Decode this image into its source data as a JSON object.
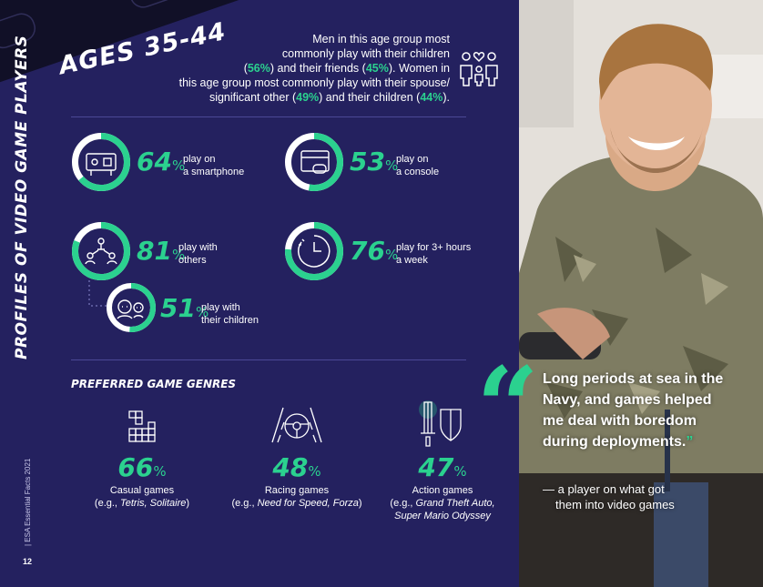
{
  "sidebar": {
    "vertical_title": "PROFILES OF VIDEO GAME PLAYERS",
    "footer": "|  ESA Essential Facts 2021",
    "page_number": "12"
  },
  "banner": {
    "title": "AGES 35-44"
  },
  "intro": {
    "line1": "Men in this age group most",
    "line2": "commonly play with their children",
    "open1": "(",
    "p1": "56%",
    "mid1": ") and their friends (",
    "p2": "45%",
    "end1": "). Women in",
    "line4": "this age group most commonly play with their spouse/",
    "line5a": "significant other (",
    "p3": "49%",
    "line5b": ") and their children (",
    "p4": "44%",
    "line5c": ")."
  },
  "stats": [
    {
      "value": 64,
      "pct": "%",
      "label1": "play on",
      "label2": "a smartphone",
      "icon": "smartphone-icon"
    },
    {
      "value": 53,
      "pct": "%",
      "label1": "play on",
      "label2": "a console",
      "icon": "console-icon"
    },
    {
      "value": 81,
      "pct": "%",
      "label1": "play with",
      "label2": "others",
      "icon": "people-icon"
    },
    {
      "value": 76,
      "pct": "%",
      "label1": "play for 3+ hours",
      "label2": "a week",
      "icon": "clock-icon"
    },
    {
      "value": 51,
      "pct": "%",
      "label1": "play with",
      "label2": "their children",
      "icon": "parent-child-icon"
    }
  ],
  "genres": {
    "heading": "PREFERRED GAME GENRES",
    "items": [
      {
        "value": "66",
        "pct": "%",
        "name": "Casual games",
        "ex_pre": "(e.g., ",
        "ex_it": "Tetris, Solitaire",
        "ex_post": ")",
        "ex2": "",
        "icon": "blocks-icon"
      },
      {
        "value": "48",
        "pct": "%",
        "name": "Racing games",
        "ex_pre": "(e.g., ",
        "ex_it": "Need for Speed, Forza",
        "ex_post": ")",
        "ex2": "",
        "icon": "steering-wheel-icon"
      },
      {
        "value": "47",
        "pct": "%",
        "name": "Action games",
        "ex_pre": "(e.g., ",
        "ex_it": "Grand Theft Auto,",
        "ex_post": "",
        "ex2": "Super Mario Odyssey",
        "icon": "sword-shield-icon"
      }
    ]
  },
  "quote": {
    "open_mark": "“",
    "text": "Long periods at sea in the Navy, and games helped me deal with boredom during deployments.",
    "close_mark": "”",
    "attr1": "— a player on what got",
    "attr2": "them into video games"
  },
  "colors": {
    "background": "#24215f",
    "accent": "#2bd18f",
    "ring_track": "#ffffff"
  }
}
